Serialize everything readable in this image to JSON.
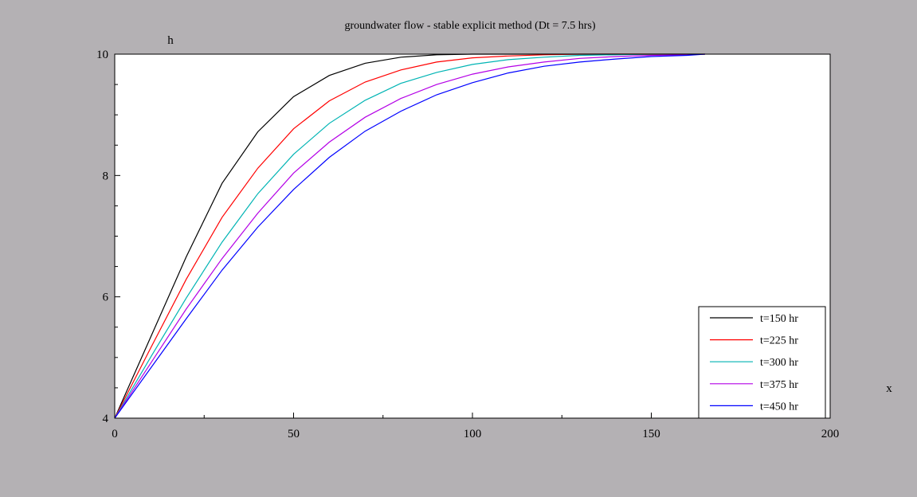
{
  "chart_data": {
    "type": "line",
    "title": "groundwater flow - stable explicit method (Dt = 7.5 hrs)",
    "xlabel": "x",
    "ylabel": "h",
    "xlim": [
      0,
      200
    ],
    "ylim": [
      4,
      10
    ],
    "xticks": [
      0,
      50,
      100,
      150,
      200
    ],
    "yticks": [
      4,
      6,
      8,
      10
    ],
    "grid": false,
    "legend_position": "bottom-right",
    "x": [
      0,
      10,
      20,
      30,
      40,
      50,
      60,
      70,
      80,
      90,
      100,
      110,
      120,
      130,
      140,
      150,
      160,
      165
    ],
    "series": [
      {
        "name": "t=150 hr",
        "color": "#000000",
        "values": [
          4.0,
          5.33,
          6.66,
          7.87,
          8.72,
          9.3,
          9.65,
          9.85,
          9.95,
          9.99,
          10.0,
          10.0,
          10.0,
          10.0,
          10.0,
          10.0,
          10.0,
          10.0
        ]
      },
      {
        "name": "t=225 hr",
        "color": "#ff0000",
        "values": [
          4.0,
          5.15,
          6.29,
          7.31,
          8.12,
          8.77,
          9.23,
          9.54,
          9.74,
          9.87,
          9.94,
          9.97,
          9.99,
          10.0,
          10.0,
          10.0,
          10.0,
          10.0
        ]
      },
      {
        "name": "t=300 hr",
        "color": "#00b4b4",
        "values": [
          4.0,
          5.0,
          5.98,
          6.9,
          7.7,
          8.35,
          8.86,
          9.24,
          9.52,
          9.7,
          9.83,
          9.91,
          9.95,
          9.98,
          9.99,
          10.0,
          10.0,
          10.0
        ]
      },
      {
        "name": "t=375 hr",
        "color": "#b400e6",
        "values": [
          4.0,
          4.9,
          5.8,
          6.63,
          7.38,
          8.04,
          8.55,
          8.96,
          9.27,
          9.5,
          9.67,
          9.79,
          9.87,
          9.93,
          9.96,
          9.98,
          9.99,
          10.0
        ]
      },
      {
        "name": "t=450 hr",
        "color": "#0000ff",
        "values": [
          4.0,
          4.82,
          5.64,
          6.44,
          7.15,
          7.77,
          8.3,
          8.73,
          9.06,
          9.33,
          9.53,
          9.69,
          9.8,
          9.87,
          9.92,
          9.96,
          9.98,
          10.0
        ]
      }
    ]
  }
}
